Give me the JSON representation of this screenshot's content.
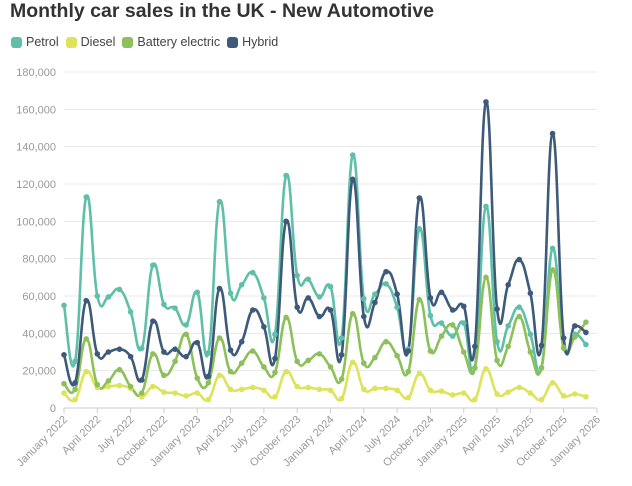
{
  "chart_data": {
    "type": "line",
    "title": "Monthly car sales in the UK - New Automotive",
    "xlabel": "",
    "ylabel": "",
    "ylim": [
      0,
      180000
    ],
    "yticks": [
      "0",
      "20,000",
      "40,000",
      "60,000",
      "80,000",
      "100,000",
      "120,000",
      "140,000",
      "160,000",
      "180,000"
    ],
    "ytick_values": [
      0,
      20000,
      40000,
      60000,
      80000,
      100000,
      120000,
      140000,
      160000,
      180000
    ],
    "xticks": [
      "January 2022",
      "April 2022",
      "July 2022",
      "October 2022",
      "January 2023",
      "April 2023",
      "July 2023",
      "October 2023",
      "January 2024",
      "April 2024",
      "July 2024",
      "October 2024",
      "January 2025",
      "April 2025",
      "July 2025",
      "October 2025",
      "January 2026"
    ],
    "x_start": "January 2022",
    "x_end": "January 2026",
    "series": [
      {
        "name": "Petrol",
        "color": "#5fbfa8",
        "values": [
          55000,
          25000,
          113000,
          60000,
          59500,
          63500,
          51500,
          32000,
          76500,
          55500,
          53500,
          44500,
          62000,
          29500,
          110500,
          61500,
          66000,
          72500,
          59000,
          39500,
          124500,
          71000,
          69000,
          59500,
          65000,
          37500,
          135500,
          58500,
          61000,
          66500,
          54000,
          31500,
          96000,
          49500,
          45500,
          38500,
          45500,
          21500,
          108000,
          35500,
          44000,
          54000,
          39500,
          21500,
          85500,
          32500,
          39500,
          34000
        ]
      },
      {
        "name": "Diesel",
        "color": "#dde35a",
        "values": [
          8000,
          4500,
          19500,
          11000,
          11500,
          12000,
          10500,
          6000,
          11500,
          8500,
          8000,
          6500,
          8000,
          4500,
          17500,
          10000,
          10000,
          11000,
          9500,
          6000,
          19500,
          11500,
          11000,
          10000,
          9500,
          5000,
          24500,
          10000,
          10500,
          10500,
          9500,
          5500,
          18500,
          9500,
          9000,
          7000,
          8000,
          4500,
          21000,
          7500,
          8500,
          11000,
          8000,
          4500,
          13500,
          6500,
          7500,
          6000
        ]
      },
      {
        "name": "Battery electric",
        "color": "#8dc05a",
        "values": [
          13000,
          10000,
          37000,
          12500,
          14500,
          20500,
          11500,
          8000,
          29000,
          17500,
          25000,
          39500,
          16000,
          13500,
          37500,
          19500,
          24000,
          30500,
          22000,
          19000,
          48500,
          25000,
          25500,
          29000,
          22000,
          15500,
          50500,
          24000,
          27000,
          35500,
          28000,
          19500,
          58000,
          30500,
          38500,
          44500,
          30000,
          21500,
          70000,
          25500,
          33000,
          49000,
          30000,
          21500,
          74000,
          32000,
          38000,
          46000
        ]
      },
      {
        "name": "Hybrid",
        "color": "#3e5a7a",
        "values": [
          28500,
          13500,
          57500,
          29000,
          30000,
          31500,
          27500,
          15000,
          46500,
          30000,
          31500,
          27500,
          35000,
          17000,
          64000,
          31000,
          35500,
          52500,
          43500,
          26500,
          100000,
          54000,
          59000,
          49000,
          52500,
          28500,
          122500,
          49000,
          56500,
          73000,
          61000,
          30500,
          112500,
          59000,
          62000,
          52500,
          54500,
          33000,
          164000,
          53000,
          66000,
          79500,
          61500,
          33500,
          147000,
          37500,
          44000,
          40500
        ]
      }
    ]
  }
}
